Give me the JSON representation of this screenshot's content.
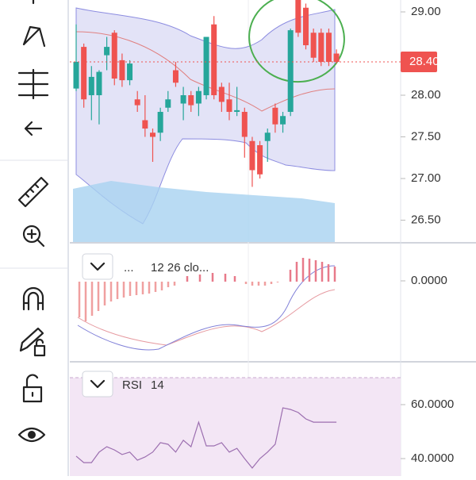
{
  "price_pane": {
    "axis_ticks": [
      {
        "value": 29,
        "label": "29.00"
      },
      {
        "value": 28,
        "label": "28.00"
      },
      {
        "value": 27.5,
        "label": "27.50"
      },
      {
        "value": 27,
        "label": "27.00"
      },
      {
        "value": 26.5,
        "label": "26.50"
      }
    ],
    "last_price": {
      "value": 28.4,
      "label": "28.40"
    },
    "candles": [
      {
        "open": 28.08,
        "high": 28.85,
        "low": 28.05,
        "close": 28.4
      },
      {
        "open": 28.58,
        "high": 28.62,
        "low": 27.85,
        "close": 27.95
      },
      {
        "open": 28.0,
        "high": 28.35,
        "low": 27.7,
        "close": 28.22
      },
      {
        "open": 28.0,
        "high": 28.3,
        "low": 27.65,
        "close": 28.28
      },
      {
        "open": 28.48,
        "high": 28.7,
        "low": 28.3,
        "close": 28.58
      },
      {
        "open": 28.75,
        "high": 28.78,
        "low": 28.12,
        "close": 28.2
      },
      {
        "open": 28.42,
        "high": 28.5,
        "low": 28.1,
        "close": 28.18
      },
      {
        "open": 28.18,
        "high": 28.42,
        "low": 28.12,
        "close": 28.38
      },
      {
        "open": 27.95,
        "high": 28.05,
        "low": 27.8,
        "close": 27.88
      },
      {
        "open": 27.7,
        "high": 28.0,
        "low": 27.5,
        "close": 27.6
      },
      {
        "open": 27.55,
        "high": 27.6,
        "low": 27.2,
        "close": 27.5
      },
      {
        "open": 27.55,
        "high": 27.85,
        "low": 27.45,
        "close": 27.8
      },
      {
        "open": 27.85,
        "high": 28.05,
        "low": 27.8,
        "close": 27.95
      },
      {
        "open": 28.3,
        "high": 28.4,
        "low": 28.1,
        "close": 28.15
      },
      {
        "open": 27.9,
        "high": 28.1,
        "low": 27.7,
        "close": 28.0
      },
      {
        "open": 28.0,
        "high": 28.05,
        "low": 27.8,
        "close": 27.88
      },
      {
        "open": 27.9,
        "high": 28.1,
        "low": 27.75,
        "close": 28.05
      },
      {
        "open": 28.0,
        "high": 28.7,
        "low": 27.95,
        "close": 28.7
      },
      {
        "open": 28.85,
        "high": 28.95,
        "low": 27.95,
        "close": 28.0
      },
      {
        "open": 28.1,
        "high": 28.15,
        "low": 27.8,
        "close": 27.92
      },
      {
        "open": 27.95,
        "high": 28.15,
        "low": 27.7,
        "close": 27.8
      },
      {
        "open": 27.8,
        "high": 28.1,
        "low": 27.75,
        "close": 27.82
      },
      {
        "open": 27.8,
        "high": 27.85,
        "low": 27.25,
        "close": 27.5
      },
      {
        "open": 27.45,
        "high": 27.5,
        "low": 26.9,
        "close": 27.1
      },
      {
        "open": 27.4,
        "high": 27.45,
        "low": 27.0,
        "close": 27.05
      },
      {
        "open": 27.45,
        "high": 27.6,
        "low": 27.2,
        "close": 27.55
      },
      {
        "open": 27.85,
        "high": 27.9,
        "low": 27.55,
        "close": 27.65
      },
      {
        "open": 27.65,
        "high": 27.8,
        "low": 27.55,
        "close": 27.75
      },
      {
        "open": 27.8,
        "high": 28.8,
        "low": 27.75,
        "close": 28.78
      },
      {
        "open": 29.15,
        "high": 29.15,
        "low": 28.7,
        "close": 28.75
      },
      {
        "open": 29.05,
        "high": 29.1,
        "low": 28.55,
        "close": 28.6
      },
      {
        "open": 28.75,
        "high": 28.8,
        "low": 28.4,
        "close": 28.45
      },
      {
        "open": 28.75,
        "high": 28.8,
        "low": 28.35,
        "close": 28.4
      },
      {
        "open": 28.75,
        "high": 28.8,
        "low": 28.35,
        "close": 28.4
      },
      {
        "open": 28.5,
        "high": 28.55,
        "low": 28.38,
        "close": 28.4
      }
    ]
  },
  "macd_pane": {
    "dots": "...",
    "params": "12 26 clo...",
    "axis_ticks": [
      {
        "value": 0,
        "label": "0.0000"
      }
    ]
  },
  "rsi_pane": {
    "name": "RSI",
    "length": "14",
    "axis_ticks": [
      {
        "value": 60,
        "label": "60.0000"
      },
      {
        "value": 40,
        "label": "40.0000"
      }
    ],
    "values": [
      40.9,
      38.5,
      38.5,
      42.4,
      44.4,
      43.2,
      41.5,
      42.4,
      39.4,
      40.6,
      42.4,
      45.9,
      45.3,
      42.4,
      46.8,
      44.4,
      53.5,
      44.7,
      44.7,
      45.9,
      42.4,
      43.8,
      40.0,
      36.5,
      40.0,
      42.4,
      45.3,
      58.8,
      58.2,
      57.1,
      54.7,
      53.5,
      53.5,
      53.5,
      53.5
    ]
  }
}
